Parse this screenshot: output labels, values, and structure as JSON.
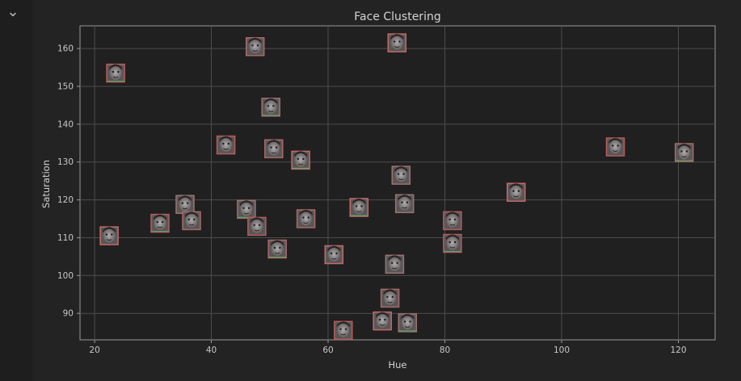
{
  "cell": {
    "collapse_icon": "chevron-down-icon"
  },
  "chart_data": {
    "type": "scatter",
    "title": "Face Clustering",
    "xlabel": "Hue",
    "ylabel": "Saturation",
    "xlim": [
      17.5,
      126.3
    ],
    "ylim": [
      83.0,
      166.0
    ],
    "xticks": [
      20,
      40,
      60,
      80,
      100,
      120
    ],
    "yticks": [
      90,
      100,
      110,
      120,
      130,
      140,
      150,
      160
    ],
    "grid": true,
    "marker": "face-thumbnail",
    "points": [
      {
        "x": 23.6,
        "y": 153.5
      },
      {
        "x": 47.5,
        "y": 160.5
      },
      {
        "x": 71.8,
        "y": 161.5
      },
      {
        "x": 50.2,
        "y": 144.5
      },
      {
        "x": 42.5,
        "y": 134.5
      },
      {
        "x": 50.7,
        "y": 133.5
      },
      {
        "x": 55.3,
        "y": 130.5
      },
      {
        "x": 72.5,
        "y": 126.5
      },
      {
        "x": 109.2,
        "y": 134.0
      },
      {
        "x": 121.0,
        "y": 132.5
      },
      {
        "x": 92.2,
        "y": 122.0
      },
      {
        "x": 35.5,
        "y": 118.8
      },
      {
        "x": 31.2,
        "y": 113.8
      },
      {
        "x": 36.6,
        "y": 114.5
      },
      {
        "x": 22.5,
        "y": 110.5
      },
      {
        "x": 46.0,
        "y": 117.5
      },
      {
        "x": 47.8,
        "y": 113.0
      },
      {
        "x": 56.2,
        "y": 115.0
      },
      {
        "x": 65.3,
        "y": 118.0
      },
      {
        "x": 73.1,
        "y": 119.0
      },
      {
        "x": 81.3,
        "y": 114.5
      },
      {
        "x": 51.3,
        "y": 107.0
      },
      {
        "x": 61.0,
        "y": 105.5
      },
      {
        "x": 71.4,
        "y": 103.0
      },
      {
        "x": 81.3,
        "y": 108.5
      },
      {
        "x": 70.6,
        "y": 94.0
      },
      {
        "x": 69.3,
        "y": 88.0
      },
      {
        "x": 73.6,
        "y": 87.5
      },
      {
        "x": 62.6,
        "y": 85.5
      }
    ]
  }
}
